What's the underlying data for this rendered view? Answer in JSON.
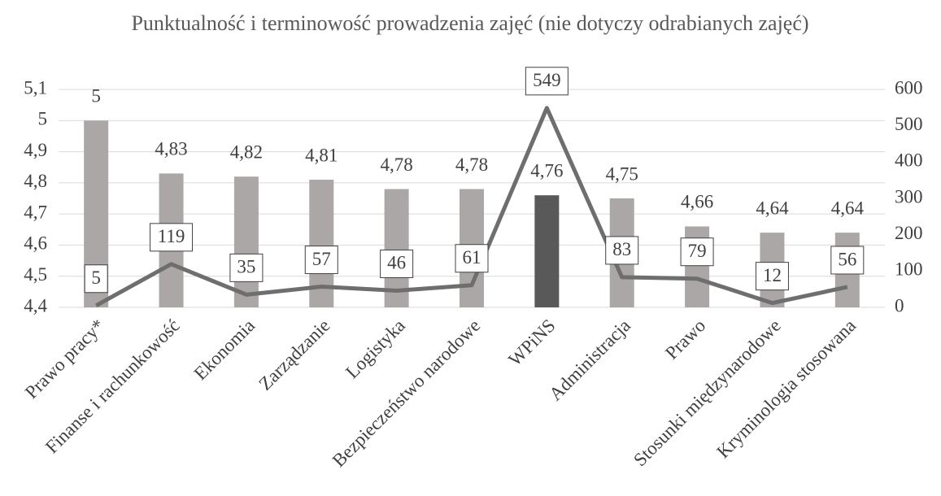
{
  "chart_data": {
    "type": "bar-line",
    "title": "Punktualność i terminowość prowadzenia zajęć (nie dotyczy odrabianych zajęć)",
    "categories": [
      "Prawo pracy*",
      "Finanse i rachunkowość",
      "Ekonomia",
      "Zarządzanie",
      "Logistyka",
      "Bezpieczeństwo narodowe",
      "WPiNS",
      "Administracja",
      "Prawo",
      "Stosunki międzynarodowe",
      "Kryminologia stosowana"
    ],
    "series": [
      {
        "type": "bar",
        "colors": [
          "#aba7a6",
          "#aba7a6",
          "#aba7a6",
          "#aba7a6",
          "#aba7a6",
          "#aba7a6",
          "#595959",
          "#aba7a6",
          "#aba7a6",
          "#aba7a6",
          "#aba7a6"
        ],
        "values": [
          5,
          4.83,
          4.82,
          4.81,
          4.78,
          4.78,
          4.76,
          4.75,
          4.66,
          4.64,
          4.64
        ],
        "value_labels": [
          "5",
          "4,83",
          "4,82",
          "4,81",
          "4,78",
          "4,78",
          "4,76",
          "4,75",
          "4,66",
          "4,64",
          "4,64"
        ]
      },
      {
        "type": "line",
        "axis": "y2",
        "color": "#6e6e6e",
        "values": [
          5,
          119,
          35,
          57,
          46,
          61,
          549,
          83,
          79,
          12,
          56
        ]
      }
    ],
    "ylim": [
      4.4,
      5.1
    ],
    "yticks": [
      {
        "value": 4.4,
        "label": "4,4"
      },
      {
        "value": 4.5,
        "label": "4,5"
      },
      {
        "value": 4.6,
        "label": "4,6"
      },
      {
        "value": 4.7,
        "label": "4,7"
      },
      {
        "value": 4.8,
        "label": "4,8"
      },
      {
        "value": 4.9,
        "label": "4,9"
      },
      5,
      {
        "value": 5.1,
        "label": "5,1"
      }
    ],
    "y2lim": [
      0,
      600
    ],
    "y2ticks": [
      0,
      100,
      200,
      300,
      400,
      500,
      600
    ],
    "grid": true
  }
}
